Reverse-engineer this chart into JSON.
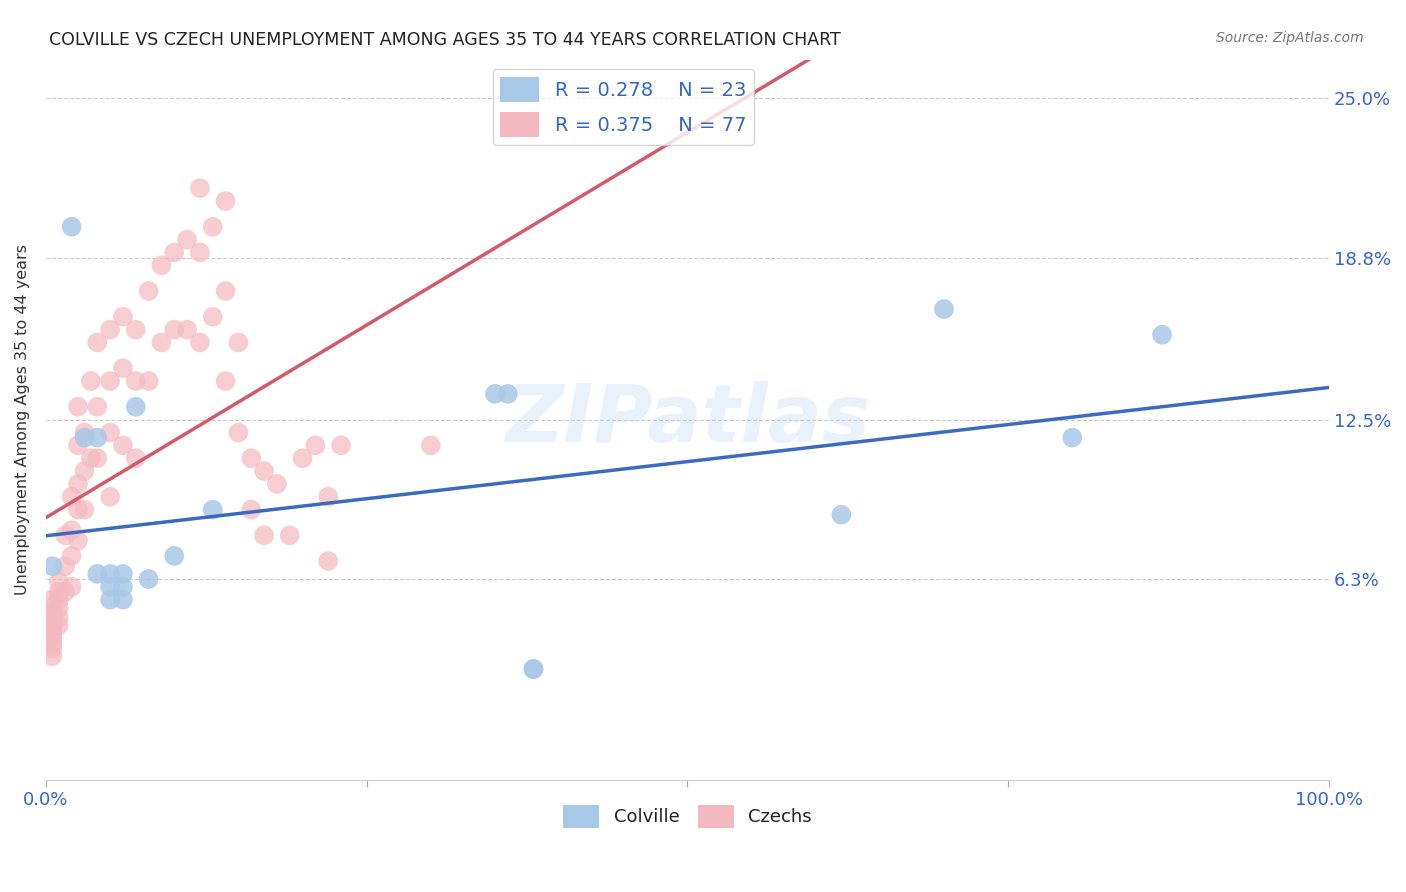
{
  "title": "COLVILLE VS CZECH UNEMPLOYMENT AMONG AGES 35 TO 44 YEARS CORRELATION CHART",
  "source": "Source: ZipAtlas.com",
  "ylabel": "Unemployment Among Ages 35 to 44 years",
  "xlim": [
    0.0,
    1.0
  ],
  "ylim": [
    -0.015,
    0.265
  ],
  "ytick_positions": [
    0.063,
    0.125,
    0.188,
    0.25
  ],
  "yticklabels": [
    "6.3%",
    "12.5%",
    "18.8%",
    "25.0%"
  ],
  "colville_color": "#a8c8e8",
  "czechs_color": "#f4b8c0",
  "colville_line_color": "#3a6bbf",
  "czechs_line_color": "#d45a6a",
  "colville_R": 0.278,
  "colville_N": 23,
  "czechs_R": 0.375,
  "czechs_N": 77,
  "background_color": "#ffffff",
  "grid_color": "#cccccc",
  "watermark": "ZIPatlas",
  "colville_x": [
    0.005,
    0.02,
    0.03,
    0.04,
    0.04,
    0.05,
    0.05,
    0.05,
    0.06,
    0.06,
    0.06,
    0.07,
    0.08,
    0.1,
    0.13,
    0.35,
    0.36,
    0.38,
    0.38,
    0.62,
    0.7,
    0.8,
    0.87
  ],
  "colville_y": [
    0.068,
    0.2,
    0.118,
    0.118,
    0.065,
    0.065,
    0.06,
    0.055,
    0.065,
    0.06,
    0.055,
    0.13,
    0.063,
    0.072,
    0.09,
    0.135,
    0.135,
    0.028,
    0.028,
    0.088,
    0.168,
    0.118,
    0.158
  ],
  "czechs_x": [
    0.005,
    0.005,
    0.005,
    0.005,
    0.005,
    0.005,
    0.005,
    0.005,
    0.005,
    0.005,
    0.005,
    0.01,
    0.01,
    0.01,
    0.01,
    0.01,
    0.01,
    0.015,
    0.015,
    0.015,
    0.02,
    0.02,
    0.02,
    0.02,
    0.025,
    0.025,
    0.025,
    0.025,
    0.025,
    0.03,
    0.03,
    0.03,
    0.035,
    0.035,
    0.04,
    0.04,
    0.04,
    0.05,
    0.05,
    0.05,
    0.05,
    0.06,
    0.06,
    0.06,
    0.07,
    0.07,
    0.07,
    0.08,
    0.08,
    0.09,
    0.09,
    0.1,
    0.1,
    0.11,
    0.11,
    0.12,
    0.12,
    0.12,
    0.13,
    0.13,
    0.14,
    0.14,
    0.14,
    0.15,
    0.15,
    0.16,
    0.16,
    0.17,
    0.17,
    0.18,
    0.19,
    0.2,
    0.21,
    0.22,
    0.22,
    0.23,
    0.3
  ],
  "czechs_y": [
    0.055,
    0.052,
    0.05,
    0.048,
    0.046,
    0.044,
    0.042,
    0.04,
    0.038,
    0.036,
    0.033,
    0.062,
    0.058,
    0.055,
    0.052,
    0.048,
    0.045,
    0.08,
    0.068,
    0.058,
    0.095,
    0.082,
    0.072,
    0.06,
    0.13,
    0.115,
    0.1,
    0.09,
    0.078,
    0.12,
    0.105,
    0.09,
    0.14,
    0.11,
    0.155,
    0.13,
    0.11,
    0.16,
    0.14,
    0.12,
    0.095,
    0.165,
    0.145,
    0.115,
    0.16,
    0.14,
    0.11,
    0.175,
    0.14,
    0.185,
    0.155,
    0.19,
    0.16,
    0.195,
    0.16,
    0.215,
    0.19,
    0.155,
    0.2,
    0.165,
    0.21,
    0.175,
    0.14,
    0.155,
    0.12,
    0.11,
    0.09,
    0.105,
    0.08,
    0.1,
    0.08,
    0.11,
    0.115,
    0.095,
    0.07,
    0.115,
    0.115
  ]
}
